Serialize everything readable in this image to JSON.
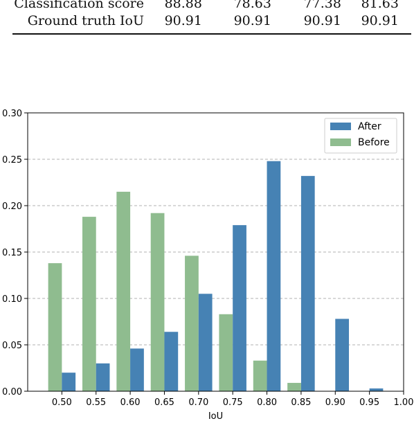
{
  "table": {
    "rows": [
      {
        "label": "Classification score",
        "values": [
          "88.88",
          "78.63",
          "77.38",
          "81.63"
        ]
      },
      {
        "label": "Ground truth IoU",
        "values": [
          "90.91",
          "90.91",
          "90.91",
          "90.91"
        ]
      }
    ]
  },
  "chart_data": {
    "type": "bar",
    "xlabel": "IoU",
    "ylabel": "",
    "title": "",
    "ylim": [
      0,
      0.3
    ],
    "xlim": [
      0.45,
      1.0
    ],
    "yticks": [
      "0.00",
      "0.05",
      "0.10",
      "0.15",
      "0.20",
      "0.25",
      "0.30"
    ],
    "xticks": [
      "0.50",
      "0.55",
      "0.60",
      "0.65",
      "0.70",
      "0.75",
      "0.80",
      "0.85",
      "0.90",
      "0.95",
      "1.00"
    ],
    "grid": "horizontal dashed",
    "legend_position": "top-right",
    "series": [
      {
        "name": "After",
        "color": "#4682b4",
        "x": [
          0.5,
          0.55,
          0.6,
          0.65,
          0.7,
          0.75,
          0.8,
          0.85,
          0.9,
          0.95
        ],
        "values": [
          0.02,
          0.03,
          0.046,
          0.064,
          0.105,
          0.179,
          0.248,
          0.232,
          0.078,
          0.003
        ]
      },
      {
        "name": "Before",
        "color": "#8fbc8f",
        "x": [
          0.5,
          0.55,
          0.6,
          0.65,
          0.7,
          0.75,
          0.8,
          0.85,
          0.9,
          0.95
        ],
        "values": [
          0.138,
          0.188,
          0.215,
          0.192,
          0.146,
          0.083,
          0.033,
          0.009,
          0,
          0
        ]
      }
    ]
  }
}
